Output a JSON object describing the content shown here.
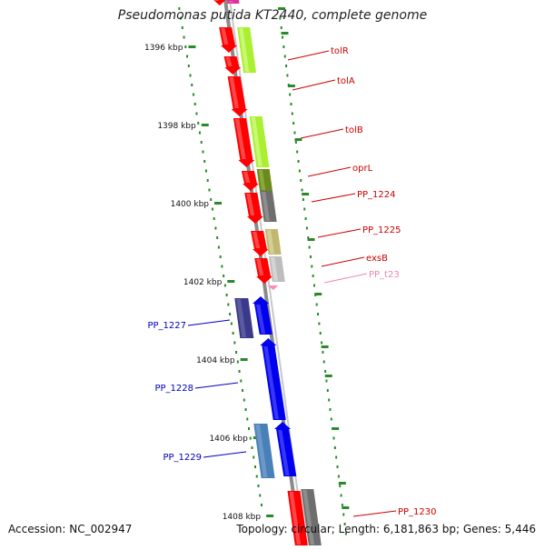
{
  "title": "Pseudomonas putida KT2440, complete genome",
  "footer": {
    "accession": "Accession: NC_002947",
    "summary": "Topology: circular; Length: 6,181,863 bp; Genes: 5,446"
  },
  "colors": {
    "backbone": "#8a8a8a",
    "tick": "#2a8a2a",
    "right_label": "#cc0000",
    "left_label": "#0000bb",
    "trna_label": "#ee88aa"
  },
  "ticks": [
    {
      "label": "1396 kbp"
    },
    {
      "label": "1398 kbp"
    },
    {
      "label": "1400 kbp"
    },
    {
      "label": "1402 kbp"
    },
    {
      "label": "1404 kbp"
    },
    {
      "label": "1406 kbp"
    },
    {
      "label": "1408 kbp"
    }
  ],
  "right_labels": [
    {
      "name": "tolR",
      "type": "gene"
    },
    {
      "name": "tolA",
      "type": "gene"
    },
    {
      "name": "tolB",
      "type": "gene"
    },
    {
      "name": "oprL",
      "type": "gene"
    },
    {
      "name": "PP_1224",
      "type": "gene"
    },
    {
      "name": "PP_1225",
      "type": "gene"
    },
    {
      "name": "exsB",
      "type": "gene"
    },
    {
      "name": "PP_t23",
      "type": "trna"
    },
    {
      "name": "PP_1230",
      "type": "gene"
    }
  ],
  "left_labels": [
    {
      "name": "PP_1227"
    },
    {
      "name": "PP_1228"
    },
    {
      "name": "PP_1229"
    }
  ]
}
